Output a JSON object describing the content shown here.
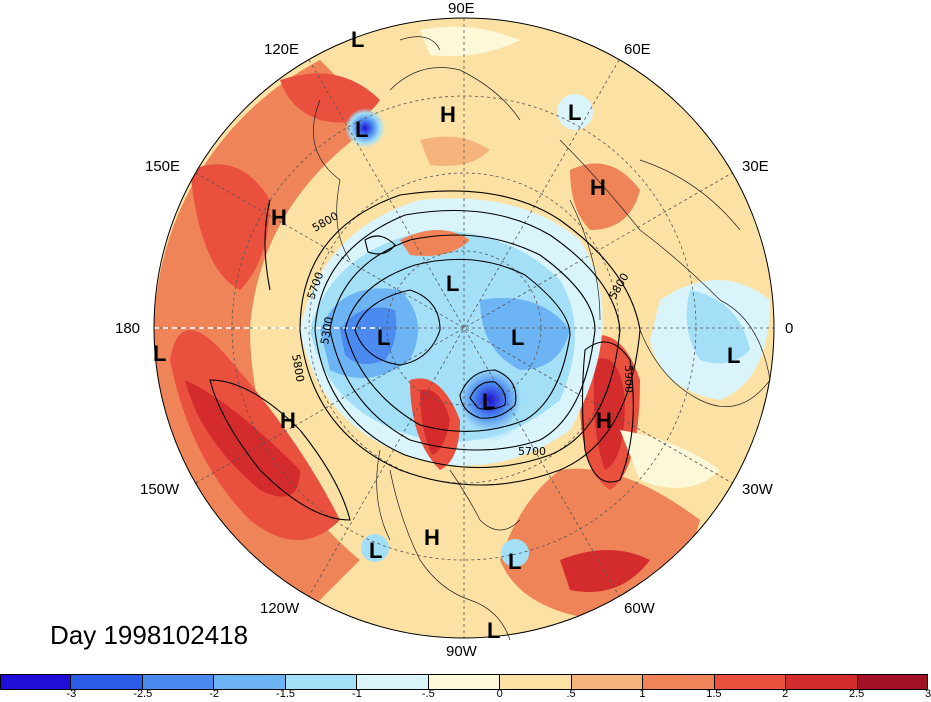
{
  "title": "Day 1998102418",
  "longitude_labels": {
    "e90": "90E",
    "e60": "60E",
    "e30": "30E",
    "e0": "0",
    "w30": "30W",
    "w60": "60W",
    "w90": "90W",
    "w120": "120W",
    "w150": "150W",
    "e180": "180",
    "e150": "150E",
    "e120": "120E"
  },
  "pressure_centers": [
    {
      "label": "L"
    },
    {
      "label": "L"
    },
    {
      "label": "H"
    },
    {
      "label": "L"
    },
    {
      "label": "H"
    },
    {
      "label": "H"
    },
    {
      "label": "L"
    },
    {
      "label": "L"
    },
    {
      "label": "L"
    },
    {
      "label": "L"
    },
    {
      "label": "L"
    },
    {
      "label": "L"
    },
    {
      "label": "H"
    },
    {
      "label": "H"
    },
    {
      "label": "L"
    },
    {
      "label": "H"
    },
    {
      "label": "L"
    },
    {
      "label": "L"
    }
  ],
  "contour_labels": [
    "5800",
    "5700",
    "5300",
    "5800",
    "5800",
    "5900",
    "5700"
  ],
  "colorbar": {
    "colors": [
      "#1f0fd6",
      "#2b5de8",
      "#4b8bf0",
      "#6db4f4",
      "#a3e0f8",
      "#d9f4fb",
      "#fdf8d8",
      "#fbe2a4",
      "#f6b47d",
      "#ef8459",
      "#e9503e",
      "#d42b2d",
      "#a31126"
    ],
    "ticks": [
      "-3",
      "-2.5",
      "-2",
      "-1.5",
      "-1",
      "-.5",
      "0",
      ".5",
      "1",
      "1.5",
      "2",
      "2.5",
      "3"
    ]
  }
}
